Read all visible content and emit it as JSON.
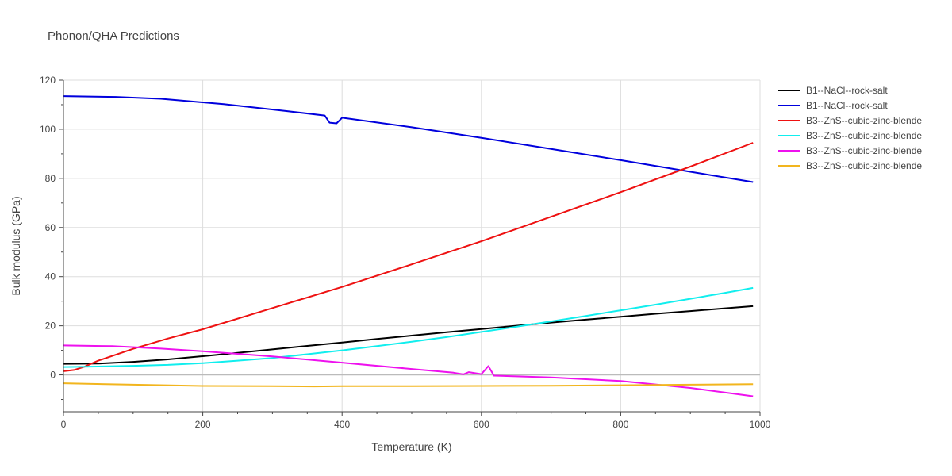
{
  "chart_data": {
    "type": "line",
    "title": "Phonon/QHA Predictions",
    "xlabel": "Temperature (K)",
    "ylabel": "Bulk modulus (GPa)",
    "xlim": [
      0,
      1000
    ],
    "ylim": [
      -15,
      120
    ],
    "xticks": [
      0,
      200,
      400,
      600,
      800,
      1000
    ],
    "yticks": [
      0,
      20,
      40,
      60,
      80,
      100,
      120
    ],
    "grid": true,
    "legend_position": "top-right",
    "series": [
      {
        "name": "B1--NaCl--rock-salt",
        "color": "#000000",
        "x": [
          0,
          50,
          100,
          150,
          200,
          250,
          300,
          350,
          400,
          450,
          500,
          550,
          600,
          650,
          700,
          750,
          800,
          850,
          900,
          950,
          990
        ],
        "y": [
          4.5,
          4.6,
          5.3,
          6.3,
          7.6,
          9.0,
          10.4,
          11.8,
          13.2,
          14.6,
          16.0,
          17.4,
          18.7,
          20.0,
          21.3,
          22.5,
          23.7,
          24.9,
          26.0,
          27.1,
          28.0
        ]
      },
      {
        "name": "B1--NaCl--rock-salt",
        "color": "#0000dd",
        "x": [
          0,
          75,
          140,
          230,
          320,
          375,
          382,
          392,
          400,
          500,
          600,
          700,
          800,
          900,
          990
        ],
        "y": [
          113.5,
          113.2,
          112.4,
          110.2,
          107.4,
          105.6,
          102.7,
          102.4,
          104.7,
          100.8,
          96.5,
          92.0,
          87.4,
          82.7,
          78.5
        ]
      },
      {
        "name": "B3--ZnS--cubic-zinc-blende",
        "color": "#ee1111",
        "x": [
          0,
          15,
          30,
          50,
          100,
          150,
          200,
          300,
          400,
          500,
          600,
          700,
          800,
          900,
          990
        ],
        "y": [
          1.5,
          2.0,
          3.3,
          5.8,
          10.6,
          14.8,
          18.6,
          27.2,
          35.8,
          45.0,
          54.4,
          64.4,
          74.4,
          84.8,
          94.5
        ]
      },
      {
        "name": "B3--ZnS--cubic-zinc-blende",
        "color": "#11eeee",
        "x": [
          0,
          50,
          100,
          150,
          200,
          250,
          300,
          350,
          400,
          450,
          500,
          550,
          600,
          650,
          700,
          750,
          800,
          850,
          900,
          950,
          990
        ],
        "y": [
          3.2,
          3.4,
          3.7,
          4.1,
          4.8,
          5.8,
          6.9,
          8.4,
          10.0,
          11.7,
          13.5,
          15.4,
          17.5,
          19.6,
          21.8,
          24.0,
          26.3,
          28.6,
          31.0,
          33.4,
          35.4
        ]
      },
      {
        "name": "B3--ZnS--cubic-zinc-blende",
        "color": "#ee11ee",
        "x": [
          0,
          70,
          140,
          200,
          300,
          400,
          500,
          560,
          574,
          582,
          600,
          610,
          618,
          700,
          800,
          900,
          990
        ],
        "y": [
          12.0,
          11.7,
          10.7,
          9.6,
          7.5,
          5.0,
          2.4,
          0.9,
          0.2,
          1.1,
          0.3,
          3.6,
          -0.3,
          -1.0,
          -2.5,
          -5.3,
          -8.7
        ]
      },
      {
        "name": "B3--ZnS--cubic-zinc-blende",
        "color": "#f2b51e",
        "x": [
          0,
          100,
          200,
          300,
          360,
          400,
          500,
          600,
          700,
          800,
          900,
          990
        ],
        "y": [
          -3.4,
          -4.0,
          -4.5,
          -4.6,
          -4.7,
          -4.6,
          -4.6,
          -4.5,
          -4.4,
          -4.2,
          -4.0,
          -3.8
        ]
      }
    ]
  }
}
